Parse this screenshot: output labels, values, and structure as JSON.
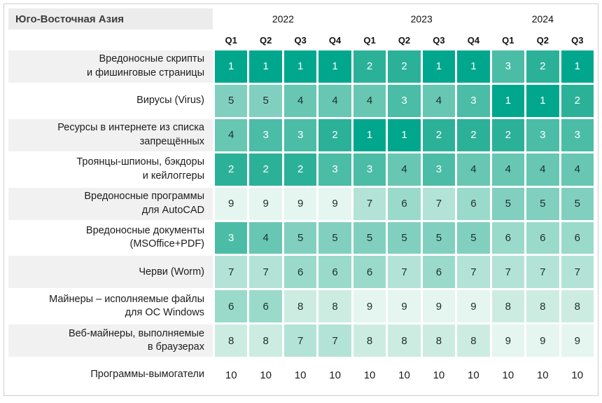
{
  "chart_data": {
    "type": "heatmap",
    "title": "Юго-Восточная Азия",
    "subtitle": "",
    "value_meaning": "rank (1 = highest position, 10 = lowest)",
    "year_groups": [
      {
        "label": "2022",
        "quarters": [
          "Q1",
          "Q2",
          "Q3",
          "Q4"
        ]
      },
      {
        "label": "2023",
        "quarters": [
          "Q1",
          "Q2",
          "Q3",
          "Q4"
        ]
      },
      {
        "label": "2024",
        "quarters": [
          "Q1",
          "Q2",
          "Q3"
        ]
      }
    ],
    "columns": [
      "2022 Q1",
      "2022 Q2",
      "2022 Q3",
      "2022 Q4",
      "2023 Q1",
      "2023 Q2",
      "2023 Q3",
      "2023 Q4",
      "2024 Q1",
      "2024 Q2",
      "2024 Q3"
    ],
    "rows": [
      {
        "label": "Вредоносные скрипты\nи фишинговые страницы",
        "values": [
          1,
          1,
          1,
          1,
          2,
          2,
          1,
          1,
          3,
          2,
          1
        ]
      },
      {
        "label": "Вирусы (Virus)",
        "values": [
          5,
          5,
          4,
          4,
          4,
          3,
          4,
          3,
          1,
          1,
          2
        ]
      },
      {
        "label": "Ресурсы в интернете из списка\nзапрещённых",
        "values": [
          4,
          3,
          3,
          2,
          1,
          1,
          2,
          2,
          2,
          3,
          3
        ]
      },
      {
        "label": "Троянцы-шпионы, бэкдоры\nи кейлоггеры",
        "values": [
          2,
          2,
          2,
          3,
          3,
          4,
          3,
          4,
          4,
          4,
          4
        ]
      },
      {
        "label": "Вредоносные программы\nдля AutoCAD",
        "values": [
          9,
          9,
          9,
          9,
          7,
          6,
          7,
          6,
          5,
          5,
          5
        ]
      },
      {
        "label": "Вредоносные документы\n(MSOffice+PDF)",
        "values": [
          3,
          4,
          5,
          5,
          5,
          5,
          5,
          5,
          6,
          6,
          6
        ]
      },
      {
        "label": "Черви (Worm)",
        "values": [
          7,
          7,
          6,
          6,
          6,
          7,
          6,
          7,
          7,
          7,
          7
        ]
      },
      {
        "label": "Майнеры – исполняемые файлы\nдля ОС Windows",
        "values": [
          6,
          6,
          8,
          8,
          9,
          9,
          9,
          9,
          8,
          8,
          8
        ]
      },
      {
        "label": "Веб-майнеры, выполняемые\nв браузерах",
        "values": [
          8,
          8,
          7,
          7,
          8,
          8,
          8,
          8,
          9,
          9,
          9
        ]
      },
      {
        "label": "Программы-вымогатели",
        "values": [
          10,
          10,
          10,
          10,
          10,
          10,
          10,
          10,
          10,
          10,
          10
        ]
      }
    ],
    "scale": {
      "min": 1,
      "max": 10,
      "colors": {
        "1": {
          "bg": "#00a78d",
          "fg": "#ffffff"
        },
        "2": {
          "bg": "#2cb199",
          "fg": "#ffffff"
        },
        "3": {
          "bg": "#4bbca6",
          "fg": "#ffffff"
        },
        "4": {
          "bg": "#67c7b2",
          "fg": "#1f2d2a"
        },
        "5": {
          "bg": "#81d0bf",
          "fg": "#1f2d2a"
        },
        "6": {
          "bg": "#9adacb",
          "fg": "#1f2d2a"
        },
        "7": {
          "bg": "#b3e3d7",
          "fg": "#1f2d2a"
        },
        "8": {
          "bg": "#ccece2",
          "fg": "#1f2d2a"
        },
        "9": {
          "bg": "#e5f5ef",
          "fg": "#1f2d2a"
        },
        "10": {
          "bg": "#ffffff",
          "fg": "#1c1c1c"
        }
      }
    },
    "layout": {
      "legend": "none",
      "grid_gap_color": "#ffffff",
      "label_column_alt_bg": [
        "#f1f1f1",
        "#ffffff"
      ]
    }
  }
}
